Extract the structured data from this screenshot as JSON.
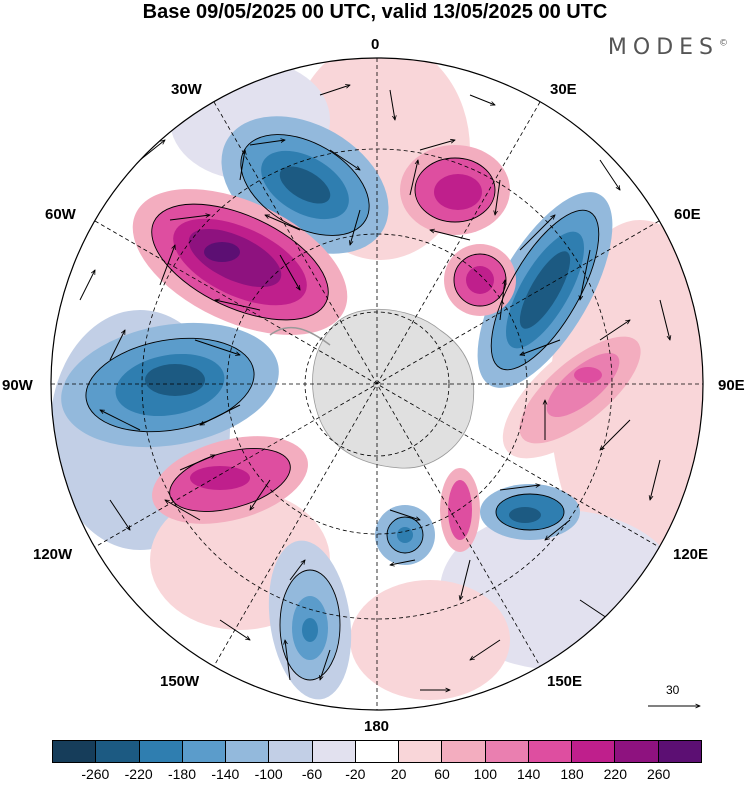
{
  "title": "Base 09/05/2025 00 UTC, valid 13/05/2025 00 UTC",
  "brand": "MODES",
  "brand_mark": "©",
  "map": {
    "projection": "polar-stereographic-south",
    "longitude_labels": {
      "top": "0",
      "top_right": "30E",
      "right_upper": "60E",
      "right": "90E",
      "right_lower": "120E",
      "bottom_right": "150E",
      "bottom": "180",
      "bottom_left": "150W",
      "left_lower": "120W",
      "left": "90W",
      "left_upper": "60W",
      "top_left": "30W"
    },
    "vector_reference": "30",
    "field": "height anomaly",
    "positive_color": "#a0207e",
    "negative_color": "#1e5f8c"
  },
  "colorbar": {
    "colors": [
      "#163d5a",
      "#1c5a82",
      "#2f7eb0",
      "#5b9ccb",
      "#93b9dc",
      "#c2cfe6",
      "#e2e1ef",
      "#ffffff",
      "#f9d6d9",
      "#f3adbf",
      "#ea7fb0",
      "#de4ea0",
      "#bf1f8c",
      "#8e127f",
      "#5c0f73"
    ],
    "labels": [
      "-260",
      "-220",
      "-180",
      "-140",
      "-100",
      "-60",
      "-20",
      "20",
      "60",
      "100",
      "140",
      "180",
      "220",
      "260"
    ]
  }
}
